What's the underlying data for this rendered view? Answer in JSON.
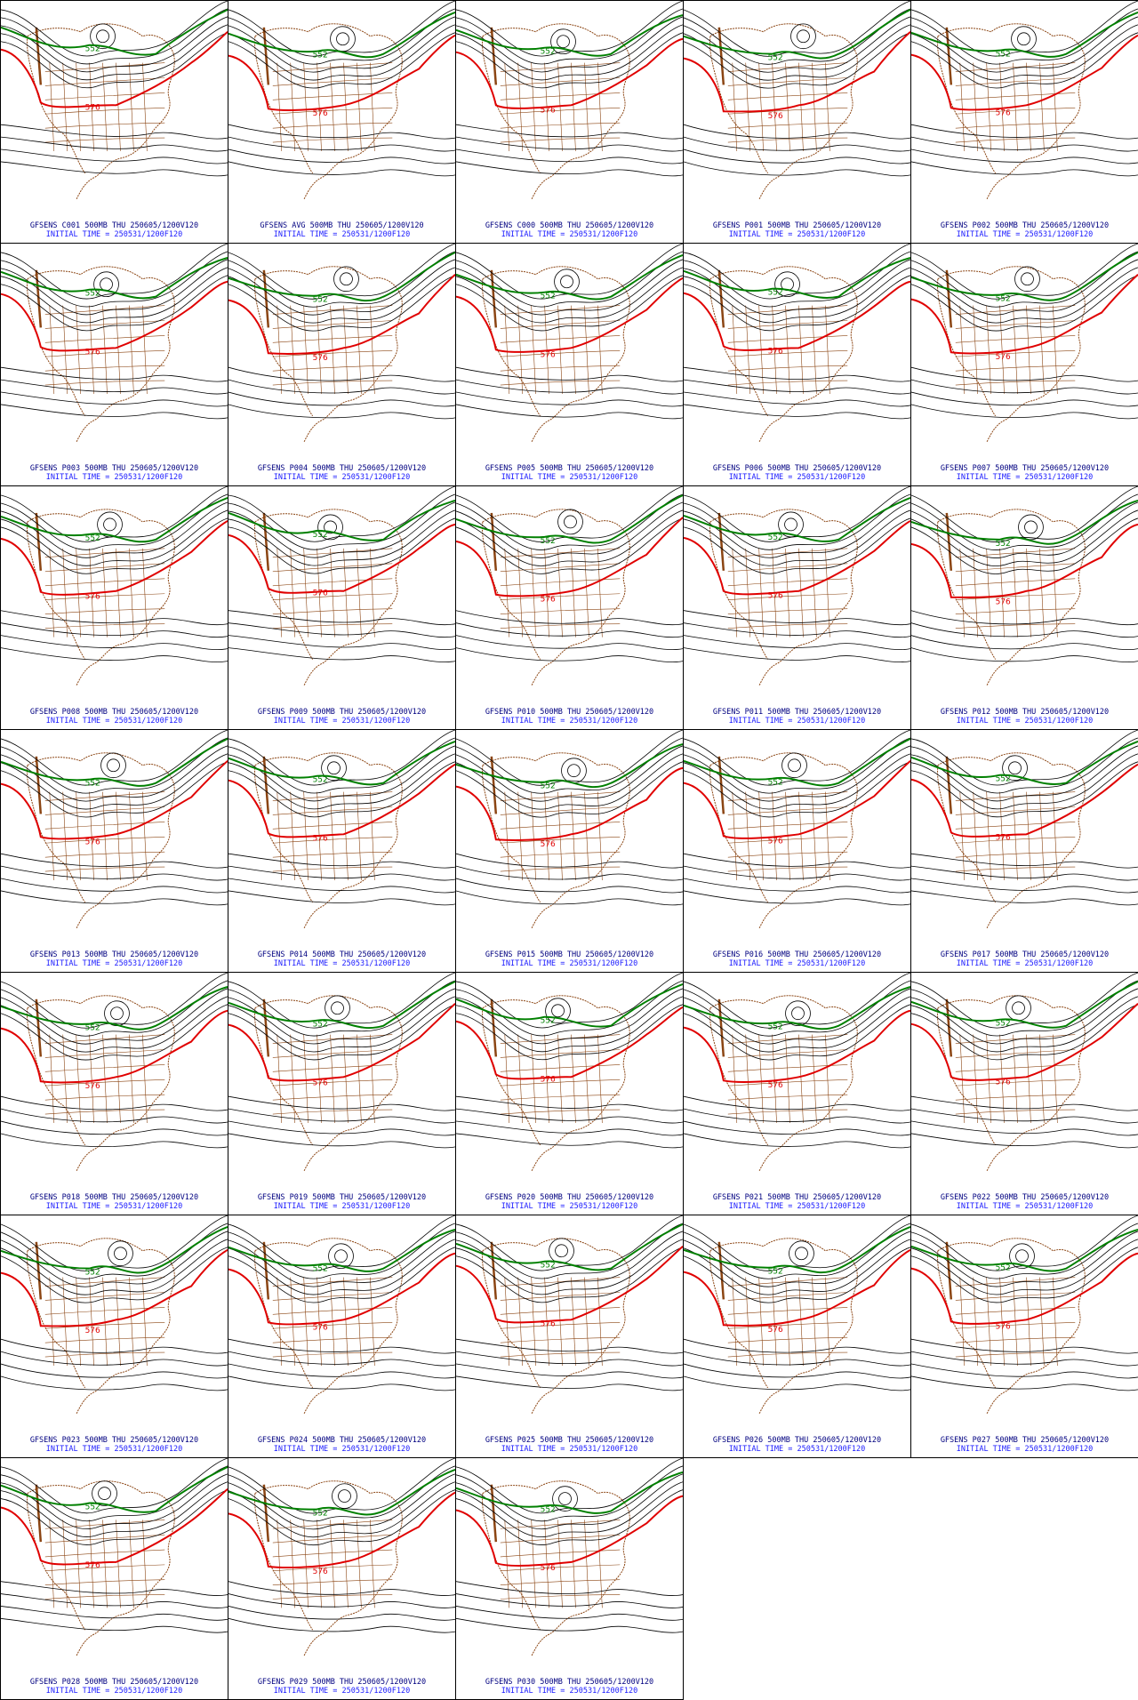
{
  "colors": {
    "contour": "#000000",
    "line_552": "#008000",
    "line_576": "#e00000",
    "low_center": "#2060ff",
    "coast": "#8b4513",
    "caption_line1": "#000080",
    "caption_line2": "#1a1aff"
  },
  "contour_labels": {
    "green": "552",
    "red": "576"
  },
  "panels": [
    {
      "line1": "GFSENS C001 500MB THU 250605/1200V120",
      "line2": "INITIAL TIME = 250531/1200F120"
    },
    {
      "line1": "GFSENS AVG 500MB THU 250605/1200V120",
      "line2": "INITIAL TIME = 250531/1200F120"
    },
    {
      "line1": "GFSENS C000 500MB THU 250605/1200V120",
      "line2": "INITIAL TIME = 250531/1200F120"
    },
    {
      "line1": "GFSENS P001 500MB THU 250605/1200V120",
      "line2": "INITIAL TIME = 250531/1200F120"
    },
    {
      "line1": "GFSENS P002 500MB THU 250605/1200V120",
      "line2": "INITIAL TIME = 250531/1200F120"
    },
    {
      "line1": "GFSENS P003 500MB THU 250605/1200V120",
      "line2": "INITIAL TIME = 250531/1200F120"
    },
    {
      "line1": "GFSENS P004 500MB THU 250605/1200V120",
      "line2": "INITIAL TIME = 250531/1200F120"
    },
    {
      "line1": "GFSENS P005 500MB THU 250605/1200V120",
      "line2": "INITIAL TIME = 250531/1200F120"
    },
    {
      "line1": "GFSENS P006 500MB THU 250605/1200V120",
      "line2": "INITIAL TIME = 250531/1200F120"
    },
    {
      "line1": "GFSENS P007 500MB THU 250605/1200V120",
      "line2": "INITIAL TIME = 250531/1200F120"
    },
    {
      "line1": "GFSENS P008 500MB THU 250605/1200V120",
      "line2": "INITIAL TIME = 250531/1200F120"
    },
    {
      "line1": "GFSENS P009 500MB THU 250605/1200V120",
      "line2": "INITIAL TIME = 250531/1200F120"
    },
    {
      "line1": "GFSENS P010 500MB THU 250605/1200V120",
      "line2": "INITIAL TIME = 250531/1200F120"
    },
    {
      "line1": "GFSENS P011 500MB THU 250605/1200V120",
      "line2": "INITIAL TIME = 250531/1200F120"
    },
    {
      "line1": "GFSENS P012 500MB THU 250605/1200V120",
      "line2": "INITIAL TIME = 250531/1200F120"
    },
    {
      "line1": "GFSENS P013 500MB THU 250605/1200V120",
      "line2": "INITIAL TIME = 250531/1200F120"
    },
    {
      "line1": "GFSENS P014 500MB THU 250605/1200V120",
      "line2": "INITIAL TIME = 250531/1200F120"
    },
    {
      "line1": "GFSENS P015 500MB THU 250605/1200V120",
      "line2": "INITIAL TIME = 250531/1200F120"
    },
    {
      "line1": "GFSENS P016 500MB THU 250605/1200V120",
      "line2": "INITIAL TIME = 250531/1200F120"
    },
    {
      "line1": "GFSENS P017 500MB THU 250605/1200V120",
      "line2": "INITIAL TIME = 250531/1200F120"
    },
    {
      "line1": "GFSENS P018 500MB THU 250605/1200V120",
      "line2": "INITIAL TIME = 250531/1200F120"
    },
    {
      "line1": "GFSENS P019 500MB THU 250605/1200V120",
      "line2": "INITIAL TIME = 250531/1200F120"
    },
    {
      "line1": "GFSENS P020 500MB THU 250605/1200V120",
      "line2": "INITIAL TIME = 250531/1200F120"
    },
    {
      "line1": "GFSENS P021 500MB THU 250605/1200V120",
      "line2": "INITIAL TIME = 250531/1200F120"
    },
    {
      "line1": "GFSENS P022 500MB THU 250605/1200V120",
      "line2": "INITIAL TIME = 250531/1200F120"
    },
    {
      "line1": "GFSENS P023 500MB THU 250605/1200V120",
      "line2": "INITIAL TIME = 250531/1200F120"
    },
    {
      "line1": "GFSENS P024 500MB THU 250605/1200V120",
      "line2": "INITIAL TIME = 250531/1200F120"
    },
    {
      "line1": "GFSENS P025 500MB THU 250605/1200V120",
      "line2": "INITIAL TIME = 250531/1200F120"
    },
    {
      "line1": "GFSENS P026 500MB THU 250605/1200V120",
      "line2": "INITIAL TIME = 250531/1200F120"
    },
    {
      "line1": "GFSENS P027 500MB THU 250605/1200V120",
      "line2": "INITIAL TIME = 250531/1200F120"
    },
    {
      "line1": "GFSENS P028 500MB THU 250605/1200V120",
      "line2": "INITIAL TIME = 250531/1200F120"
    },
    {
      "line1": "GFSENS P029 500MB THU 250605/1200V120",
      "line2": "INITIAL TIME = 250531/1200F120"
    },
    {
      "line1": "GFSENS P030 500MB THU 250605/1200V120",
      "line2": "INITIAL TIME = 250531/1200F120"
    }
  ]
}
